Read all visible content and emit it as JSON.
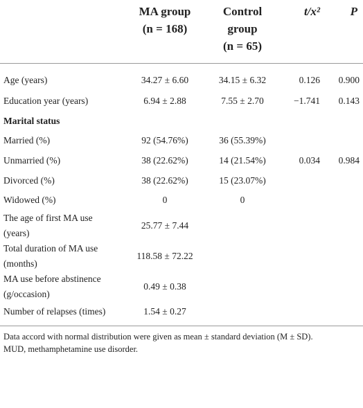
{
  "table": {
    "headers": [
      {
        "lines": [
          "MA group",
          "(n = 168)"
        ]
      },
      {
        "lines": [
          "Control",
          "group",
          "(n = 65)"
        ]
      },
      {
        "lines": [
          "t/x²"
        ]
      },
      {
        "lines": [
          "P"
        ]
      }
    ],
    "rows": [
      {
        "label": "Age (years)",
        "ma": "34.27 ± 6.60",
        "control": "34.15 ± 6.32",
        "t": "0.126",
        "p": "0.900"
      },
      {
        "label": "Education year (years)",
        "ma": "6.94 ± 2.88",
        "control": "7.55 ± 2.70",
        "t": "−1.741",
        "p": "0.143"
      },
      {
        "label": "Marital status",
        "section": true
      },
      {
        "label": "Married (%)",
        "ma": "92 (54.76%)",
        "control": "36 (55.39%)"
      },
      {
        "label": "Unmarried (%)",
        "ma": "38 (22.62%)",
        "control": "14 (21.54%)",
        "t": "0.034",
        "p": "0.984"
      },
      {
        "label": "Divorced (%)",
        "ma": "38 (22.62%)",
        "control": "15 (23.07%)"
      },
      {
        "label": "Widowed (%)",
        "ma": "0",
        "control": "0"
      },
      {
        "label": "The age of first MA use (years)",
        "ma": "25.77 ± 7.44"
      },
      {
        "label": "Total duration of MA use (months)",
        "ma": "118.58 ± 72.22"
      },
      {
        "label": "MA use before abstinence (g/occasion)",
        "ma": "0.49 ± 0.38"
      },
      {
        "label": "Number of relapses (times)",
        "ma": "1.54 ± 0.27"
      }
    ],
    "footnotes": [
      "Data accord with normal distribution were given as mean ± standard deviation (M ± SD).",
      "MUD, methamphetamine use disorder."
    ]
  }
}
